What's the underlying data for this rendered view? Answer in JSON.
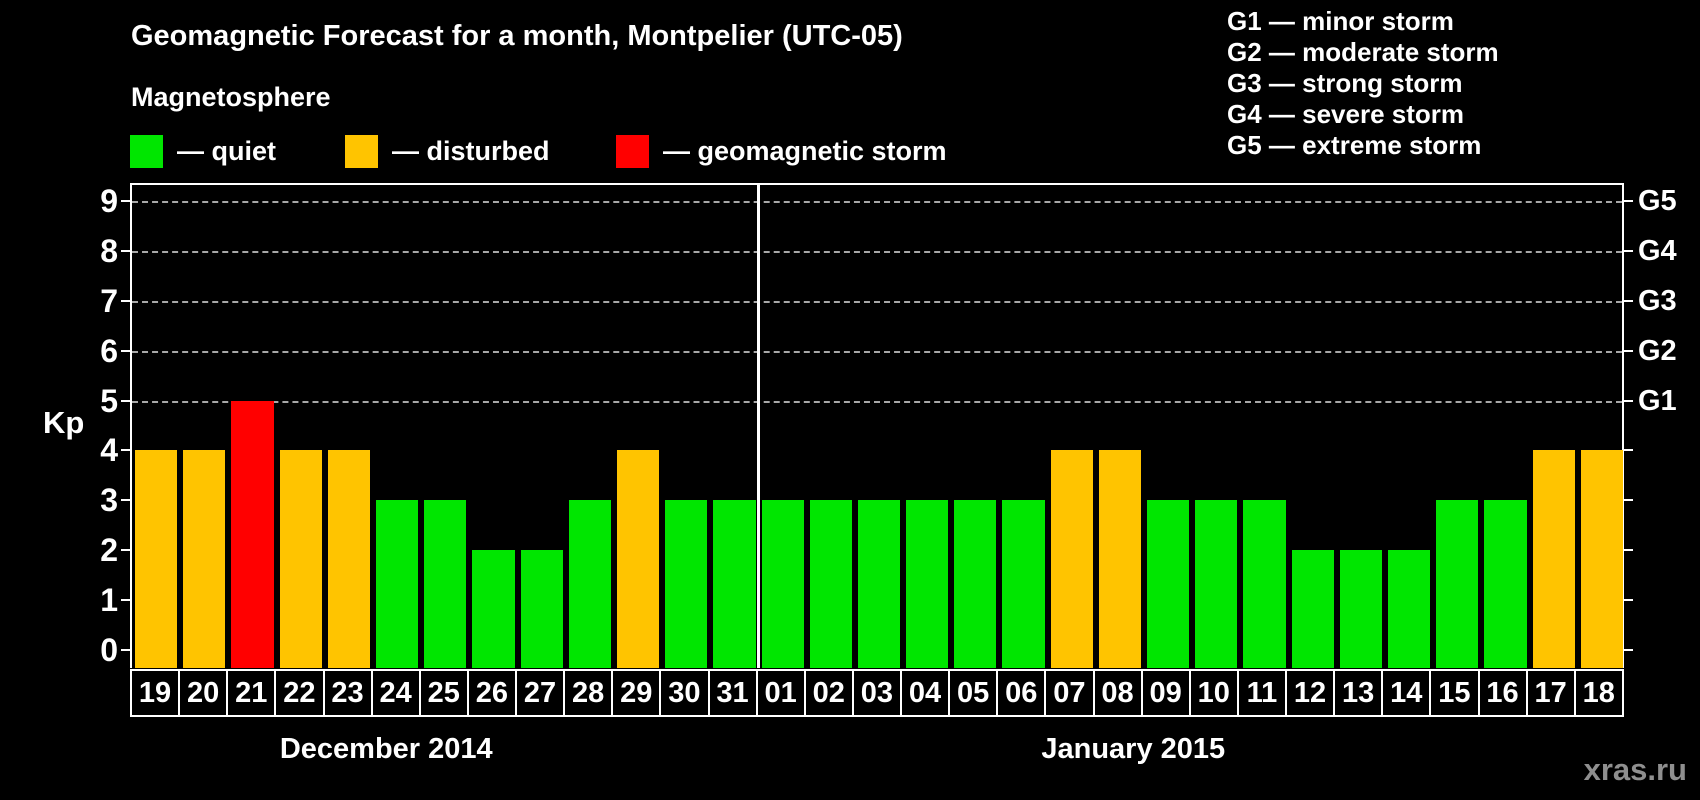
{
  "title": "Geomagnetic Forecast for a month, Montpelier (UTC-05)",
  "magnetosphere_legend": {
    "heading": "Magnetosphere",
    "items": [
      {
        "key": "quiet",
        "label": "— quiet",
        "color": "#00e600"
      },
      {
        "key": "disturbed",
        "label": "— disturbed",
        "color": "#ffc400"
      },
      {
        "key": "storm",
        "label": "— geomagnetic storm",
        "color": "#ff0000"
      }
    ]
  },
  "storm_scale_legend": [
    "G1 — minor storm",
    "G2 — moderate storm",
    "G3 — strong storm",
    "G4 — severe storm",
    "G5 — extreme storm"
  ],
  "watermark": "xras.ru",
  "chart_data": {
    "type": "bar",
    "title": "Geomagnetic Forecast for a month, Montpelier (UTC-05)",
    "ylabel": "Kp",
    "ylim": [
      0,
      9
    ],
    "y_ticks": [
      "0",
      "1",
      "2",
      "3",
      "4",
      "5",
      "6",
      "7",
      "8",
      "9"
    ],
    "gridlines_at": [
      5,
      6,
      7,
      8,
      9
    ],
    "grid": "dashed, horizontal, Kp 5-9 only",
    "legend_position": "top",
    "right_axis_labels": [
      {
        "kp": 5,
        "label": "G1"
      },
      {
        "kp": 6,
        "label": "G2"
      },
      {
        "kp": 7,
        "label": "G3"
      },
      {
        "kp": 8,
        "label": "G4"
      },
      {
        "kp": 9,
        "label": "G5"
      }
    ],
    "status_colors": {
      "quiet": "#00e600",
      "disturbed": "#ffc400",
      "storm": "#ff0000"
    },
    "months": [
      {
        "label": "December 2014",
        "days": [
          {
            "day": "19",
            "kp": 4,
            "status": "disturbed"
          },
          {
            "day": "20",
            "kp": 4,
            "status": "disturbed"
          },
          {
            "day": "21",
            "kp": 5,
            "status": "storm"
          },
          {
            "day": "22",
            "kp": 4,
            "status": "disturbed"
          },
          {
            "day": "23",
            "kp": 4,
            "status": "disturbed"
          },
          {
            "day": "24",
            "kp": 3,
            "status": "quiet"
          },
          {
            "day": "25",
            "kp": 3,
            "status": "quiet"
          },
          {
            "day": "26",
            "kp": 2,
            "status": "quiet"
          },
          {
            "day": "27",
            "kp": 2,
            "status": "quiet"
          },
          {
            "day": "28",
            "kp": 3,
            "status": "quiet"
          },
          {
            "day": "29",
            "kp": 4,
            "status": "disturbed"
          },
          {
            "day": "30",
            "kp": 3,
            "status": "quiet"
          },
          {
            "day": "31",
            "kp": 3,
            "status": "quiet"
          }
        ]
      },
      {
        "label": "January 2015",
        "days": [
          {
            "day": "01",
            "kp": 3,
            "status": "quiet"
          },
          {
            "day": "02",
            "kp": 3,
            "status": "quiet"
          },
          {
            "day": "03",
            "kp": 3,
            "status": "quiet"
          },
          {
            "day": "04",
            "kp": 3,
            "status": "quiet"
          },
          {
            "day": "05",
            "kp": 3,
            "status": "quiet"
          },
          {
            "day": "06",
            "kp": 3,
            "status": "quiet"
          },
          {
            "day": "07",
            "kp": 4,
            "status": "disturbed"
          },
          {
            "day": "08",
            "kp": 4,
            "status": "disturbed"
          },
          {
            "day": "09",
            "kp": 3,
            "status": "quiet"
          },
          {
            "day": "10",
            "kp": 3,
            "status": "quiet"
          },
          {
            "day": "11",
            "kp": 3,
            "status": "quiet"
          },
          {
            "day": "12",
            "kp": 2,
            "status": "quiet"
          },
          {
            "day": "13",
            "kp": 2,
            "status": "quiet"
          },
          {
            "day": "14",
            "kp": 2,
            "status": "quiet"
          },
          {
            "day": "15",
            "kp": 3,
            "status": "quiet"
          },
          {
            "day": "16",
            "kp": 3,
            "status": "quiet"
          },
          {
            "day": "17",
            "kp": 4,
            "status": "disturbed"
          },
          {
            "day": "18",
            "kp": 4,
            "status": "disturbed"
          }
        ]
      }
    ]
  }
}
